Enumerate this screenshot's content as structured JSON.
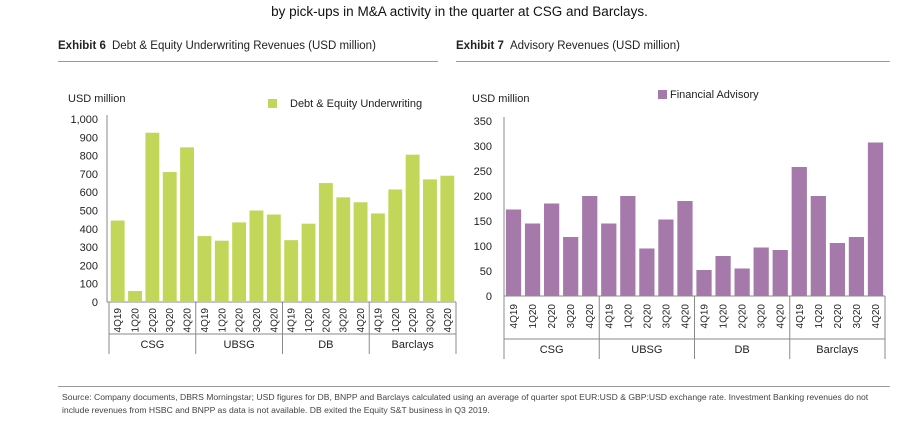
{
  "intro_text": "by pick-ups in M&A activity in the quarter at CSG and Barclays.",
  "exhibit6": {
    "label": "Exhibit 6",
    "title": "Debt & Equity Underwriting Revenues (USD million)"
  },
  "exhibit7": {
    "label": "Exhibit 7",
    "title": "Advisory Revenues  (USD million)"
  },
  "source_text": "Source: Company documents, DBRS Morningstar; USD figures for DB, BNPP and Barclays calculated using an average of quarter spot EUR:USD & GBP:USD exchange rate. Investment Banking revenues do not include revenues from HSBC and BNPP as data is not available. DB exited the Equity S&T business in Q3 2019.",
  "colors": {
    "green": "#c2d65a",
    "purple": "#a57aab"
  },
  "chart_data": [
    {
      "type": "bar",
      "title": "Debt & Equity Underwriting Revenues (USD million)",
      "ylabel": "USD million",
      "xlabel": "",
      "ylim": [
        0,
        1000
      ],
      "yticks": [
        0,
        100,
        200,
        300,
        400,
        500,
        600,
        700,
        800,
        900,
        1000
      ],
      "ytick_labels": [
        "0",
        "100",
        "200",
        "300",
        "400",
        "500",
        "600",
        "700",
        "800",
        "900",
        "1,000"
      ],
      "grid": false,
      "legend": "top-right",
      "color": "#c2d65a",
      "series_name": "Debt & Equity Underwriting",
      "categories": [
        "4Q19",
        "1Q20",
        "2Q20",
        "3Q20",
        "4Q20",
        "4Q19",
        "1Q20",
        "2Q20",
        "3Q20",
        "4Q20",
        "4Q19",
        "1Q20",
        "2Q20",
        "3Q20",
        "4Q20",
        "4Q19",
        "1Q20",
        "2Q20",
        "3Q20",
        "4Q20"
      ],
      "groups": [
        "CSG",
        "UBSG",
        "DB",
        "Barclays"
      ],
      "values": [
        445,
        60,
        925,
        710,
        845,
        360,
        335,
        435,
        500,
        478,
        338,
        428,
        650,
        572,
        545,
        484,
        615,
        805,
        670,
        690
      ]
    },
    {
      "type": "bar",
      "title": "Advisory Revenues (USD million)",
      "ylabel": "USD million",
      "xlabel": "",
      "ylim": [
        0,
        350
      ],
      "yticks": [
        0,
        50,
        100,
        150,
        200,
        250,
        300,
        350
      ],
      "ytick_labels": [
        "0",
        "50",
        "100",
        "150",
        "200",
        "250",
        "300",
        "350"
      ],
      "grid": false,
      "legend": "top-center",
      "color": "#a57aab",
      "series_name": "Financial Advisory",
      "categories": [
        "4Q19",
        "1Q20",
        "2Q20",
        "3Q20",
        "4Q20",
        "4Q19",
        "1Q20",
        "2Q20",
        "3Q20",
        "4Q20",
        "4Q19",
        "1Q20",
        "2Q20",
        "3Q20",
        "4Q20",
        "4Q19",
        "1Q20",
        "2Q20",
        "3Q20",
        "4Q20"
      ],
      "groups": [
        "CSG",
        "UBSG",
        "DB",
        "Barclays"
      ],
      "values": [
        173,
        145,
        185,
        118,
        200,
        145,
        200,
        95,
        153,
        190,
        52,
        80,
        55,
        97,
        92,
        258,
        200,
        106,
        118,
        307
      ]
    }
  ]
}
